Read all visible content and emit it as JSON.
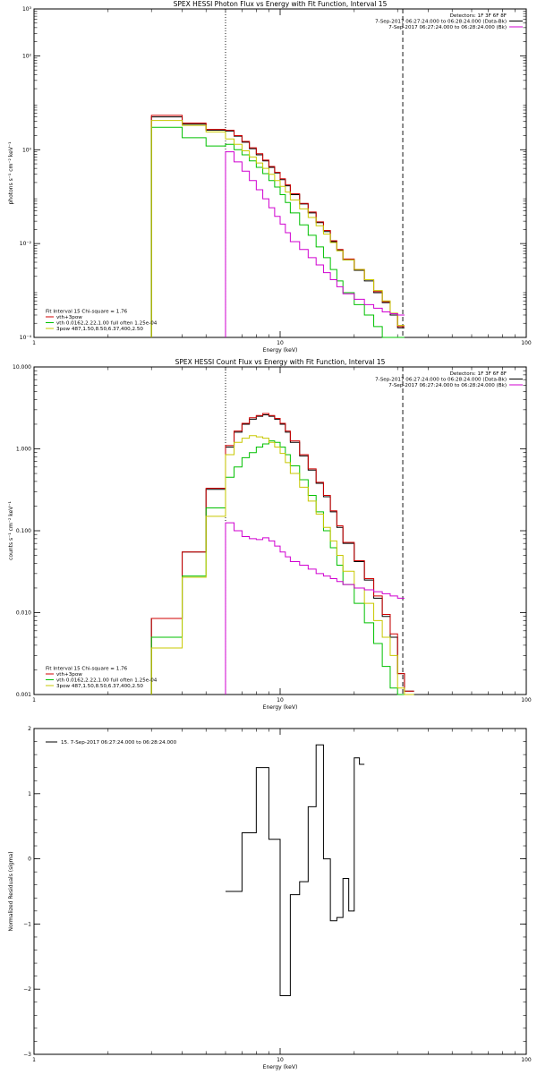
{
  "chart_data": [
    {
      "type": "line",
      "title": "SPEX HESSI Photon Flux vs Energy with Fit Function, Interval 15",
      "xlabel": "Energy (keV)",
      "ylabel": "photons s⁻¹ cm⁻² keV⁻¹",
      "xscale": "log",
      "yscale": "log",
      "xlim": [
        1,
        100
      ],
      "ylim": [
        0.0001,
        1000
      ],
      "x_ticks": [
        {
          "v": 1,
          "label": "1"
        },
        {
          "v": 10,
          "label": "10"
        },
        {
          "v": 100,
          "label": "100"
        }
      ],
      "y_ticks": [
        {
          "v": 0.0001,
          "label": "10⁻⁴"
        },
        {
          "v": 0.01,
          "label": "10⁻²"
        },
        {
          "v": 1,
          "label": "10⁰"
        },
        {
          "v": 100,
          "label": "10²"
        },
        {
          "v": 1000,
          "label": "10³"
        }
      ],
      "vlines": [
        {
          "x": 6.0,
          "style": "dotted"
        },
        {
          "x": 31.5,
          "style": "dashed"
        }
      ],
      "annotations_right": [
        {
          "text": "Detectors: 1F 3F 6F 8F",
          "color": "#000000"
        },
        {
          "text": "7-Sep-2017 06:27:24.000 to 06:28:24.000 (Data-Bk)",
          "color": "#000000"
        },
        {
          "text": "7-Sep-2017 06:27:24.000 to 06:28:24.000 (Bk)",
          "color": "#d000d0"
        }
      ],
      "legend_left": [
        {
          "text": "Fit Interval 15   Chi-square = 1.76",
          "color": null
        },
        {
          "text": "vth+3pow",
          "color": "#d00000"
        },
        {
          "text": "vth 0.0162,2.22,1.00  full often 1.25e-04",
          "color": "#00c000"
        },
        {
          "text": "3pow 487,1.50,8.50,6.37,400,2.50",
          "color": "#c8c800"
        }
      ],
      "edges": [
        3,
        4,
        5,
        6,
        6.5,
        7,
        7.5,
        8,
        8.5,
        9,
        9.5,
        10,
        10.5,
        11,
        12,
        13,
        14,
        15,
        16,
        17,
        18,
        20,
        22,
        24,
        26,
        28,
        30,
        32
      ],
      "series": [
        {
          "name": "Data-Bk",
          "color": "#000000",
          "values": [
            5.0,
            3.5,
            2.6,
            2.5,
            1.95,
            1.45,
            1.05,
            0.78,
            0.58,
            0.42,
            0.32,
            0.23,
            0.17,
            0.11,
            0.07,
            0.045,
            0.028,
            0.018,
            0.011,
            0.0072,
            0.0045,
            0.0027,
            0.0016,
            0.0009,
            0.00055,
            0.0003,
            0.00016
          ]
        },
        {
          "name": "vth+3pow",
          "color": "#d00000",
          "values": [
            5.4,
            3.7,
            2.7,
            2.6,
            2.0,
            1.5,
            1.1,
            0.82,
            0.6,
            0.44,
            0.33,
            0.24,
            0.18,
            0.115,
            0.072,
            0.047,
            0.029,
            0.019,
            0.0115,
            0.0075,
            0.0047,
            0.0028,
            0.0017,
            0.00095,
            0.00058,
            0.00032,
            0.00017
          ]
        },
        {
          "name": "vth",
          "color": "#00c000",
          "values": [
            3.0,
            1.8,
            1.2,
            1.3,
            1.0,
            0.78,
            0.58,
            0.42,
            0.31,
            0.22,
            0.16,
            0.11,
            0.075,
            0.045,
            0.025,
            0.015,
            0.0085,
            0.005,
            0.0028,
            0.0016,
            0.0009,
            0.0005,
            0.0003,
            0.00017,
            0.0001,
            0.0001,
            0.0001
          ]
        },
        {
          "name": "3pow",
          "color": "#c8c800",
          "values": [
            4.2,
            3.3,
            2.4,
            1.7,
            1.3,
            0.95,
            0.7,
            0.52,
            0.4,
            0.3,
            0.22,
            0.165,
            0.125,
            0.085,
            0.055,
            0.036,
            0.024,
            0.016,
            0.0105,
            0.007,
            0.0045,
            0.0028,
            0.0017,
            0.001,
            0.0006,
            0.00033,
            0.00018
          ]
        },
        {
          "name": "Bk",
          "color": "#d000d0",
          "values": [
            null,
            null,
            null,
            0.9,
            0.55,
            0.35,
            0.22,
            0.14,
            0.09,
            0.058,
            0.038,
            0.026,
            0.017,
            0.011,
            0.0075,
            0.005,
            0.0035,
            0.0024,
            0.0017,
            0.0012,
            0.00085,
            0.00065,
            0.0005,
            0.00042,
            0.00035,
            0.00032,
            0.0003
          ]
        }
      ]
    },
    {
      "type": "line",
      "title": "SPEX HESSI Count Flux vs Energy with Fit Function, Interval 15",
      "xlabel": "Energy (keV)",
      "ylabel": "counts s⁻¹ cm⁻² keV⁻¹",
      "xscale": "log",
      "yscale": "log",
      "xlim": [
        1,
        100
      ],
      "ylim": [
        0.001,
        10
      ],
      "x_ticks": [
        {
          "v": 1,
          "label": "1"
        },
        {
          "v": 10,
          "label": "10"
        },
        {
          "v": 100,
          "label": "100"
        }
      ],
      "y_ticks": [
        {
          "v": 0.001,
          "label": "0.001"
        },
        {
          "v": 0.01,
          "label": "0.010"
        },
        {
          "v": 0.1,
          "label": "0.100"
        },
        {
          "v": 1,
          "label": "1.000"
        },
        {
          "v": 10,
          "label": "10.000"
        }
      ],
      "vlines": [
        {
          "x": 6.0,
          "style": "dotted"
        },
        {
          "x": 31.5,
          "style": "dashed"
        }
      ],
      "annotations_right": [
        {
          "text": "Detectors: 1F 3F 6F 8F",
          "color": "#000000"
        },
        {
          "text": "7-Sep-2017 06:27:24.000 to 06:28:24.000 (Data-Bk)",
          "color": "#000000"
        },
        {
          "text": "7-Sep-2017 06:27:24.000 to 06:28:24.000 (Bk)",
          "color": "#d000d0"
        }
      ],
      "legend_left": [
        {
          "text": "Fit Interval 15   Chi-square = 1.76",
          "color": null
        },
        {
          "text": "vth+3pow",
          "color": "#d00000"
        },
        {
          "text": "vth 0.0162,2.22,1.00  full often 1.25e-04",
          "color": "#00c000"
        },
        {
          "text": "3pow 487,1.50,8.50,6.37,400,2.50",
          "color": "#c8c800"
        }
      ],
      "edges": [
        3,
        4,
        5,
        6,
        6.5,
        7,
        7.5,
        8,
        8.5,
        9,
        9.5,
        10,
        10.5,
        11,
        12,
        13,
        14,
        15,
        16,
        17,
        18,
        20,
        22,
        24,
        26,
        28,
        30,
        32,
        35
      ],
      "series": [
        {
          "name": "Data-Bk",
          "color": "#000000",
          "values": [
            0.0085,
            0.055,
            0.32,
            1.05,
            1.6,
            2.0,
            2.3,
            2.5,
            2.6,
            2.5,
            2.3,
            2.0,
            1.6,
            1.2,
            0.82,
            0.55,
            0.38,
            0.26,
            0.17,
            0.11,
            0.07,
            0.042,
            0.025,
            0.015,
            0.009,
            0.005,
            0.0018,
            0.0011
          ]
        },
        {
          "name": "vth+3pow",
          "color": "#d00000",
          "values": [
            0.0085,
            0.055,
            0.33,
            1.1,
            1.65,
            2.05,
            2.4,
            2.55,
            2.7,
            2.55,
            2.35,
            2.05,
            1.65,
            1.25,
            0.85,
            0.57,
            0.39,
            0.27,
            0.175,
            0.115,
            0.072,
            0.043,
            0.026,
            0.016,
            0.0095,
            0.0055,
            0.0018,
            0.0011
          ]
        },
        {
          "name": "vth",
          "color": "#00c000",
          "values": [
            0.005,
            0.028,
            0.19,
            0.45,
            0.6,
            0.78,
            0.9,
            1.05,
            1.15,
            1.25,
            1.2,
            1.05,
            0.85,
            0.62,
            0.42,
            0.27,
            0.17,
            0.1,
            0.062,
            0.038,
            0.022,
            0.013,
            0.0075,
            0.0042,
            0.0022,
            0.0012,
            0.001,
            0.001
          ]
        },
        {
          "name": "3pow",
          "color": "#c8c800",
          "values": [
            0.0037,
            0.027,
            0.15,
            0.85,
            1.2,
            1.35,
            1.45,
            1.4,
            1.35,
            1.2,
            1.05,
            0.88,
            0.68,
            0.5,
            0.34,
            0.23,
            0.16,
            0.11,
            0.075,
            0.05,
            0.032,
            0.02,
            0.013,
            0.008,
            0.005,
            0.003,
            0.0012,
            0.001
          ]
        },
        {
          "name": "Bk",
          "color": "#d000d0",
          "values": [
            null,
            null,
            null,
            0.125,
            0.1,
            0.085,
            0.08,
            0.078,
            0.082,
            0.075,
            0.065,
            0.055,
            0.048,
            0.042,
            0.038,
            0.034,
            0.03,
            0.028,
            0.026,
            0.024,
            0.022,
            0.02,
            0.019,
            0.018,
            0.017,
            0.016,
            0.015,
            null
          ]
        }
      ]
    },
    {
      "type": "line",
      "title": "",
      "xlabel": "Energy (keV)",
      "ylabel": "Normalized Residuals (sigma)",
      "xscale": "log",
      "yscale": "linear",
      "xlim": [
        1,
        100
      ],
      "ylim": [
        -3,
        2
      ],
      "x_ticks": [
        {
          "v": 1,
          "label": "1"
        },
        {
          "v": 10,
          "label": "10"
        },
        {
          "v": 100,
          "label": "100"
        }
      ],
      "y_ticks": [
        {
          "v": -3,
          "label": "−3"
        },
        {
          "v": -2,
          "label": "−2"
        },
        {
          "v": -1,
          "label": "−1"
        },
        {
          "v": 0,
          "label": "0"
        },
        {
          "v": 1,
          "label": "1"
        },
        {
          "v": 2,
          "label": "2"
        }
      ],
      "vlines": [],
      "annotations_right": [],
      "legend_left": [
        {
          "text": "15.  7-Sep-2017 06:27:24.000 to 06:28:24.000",
          "color": "#000000",
          "line": true
        }
      ],
      "edges": [
        6,
        7,
        8,
        9,
        10,
        11,
        12,
        13,
        14,
        15,
        16,
        17,
        18,
        19,
        20,
        21,
        22,
        23,
        24,
        25
      ],
      "series": [
        {
          "name": "Residuals",
          "color": "#000000",
          "values": [
            -0.5,
            0.4,
            1.4,
            0.3,
            -2.1,
            -0.55,
            -0.35,
            0.8,
            1.75,
            0.0,
            -0.95,
            -0.9,
            -0.3,
            -0.8,
            1.55,
            1.45,
            null,
            null,
            null
          ]
        }
      ]
    }
  ]
}
